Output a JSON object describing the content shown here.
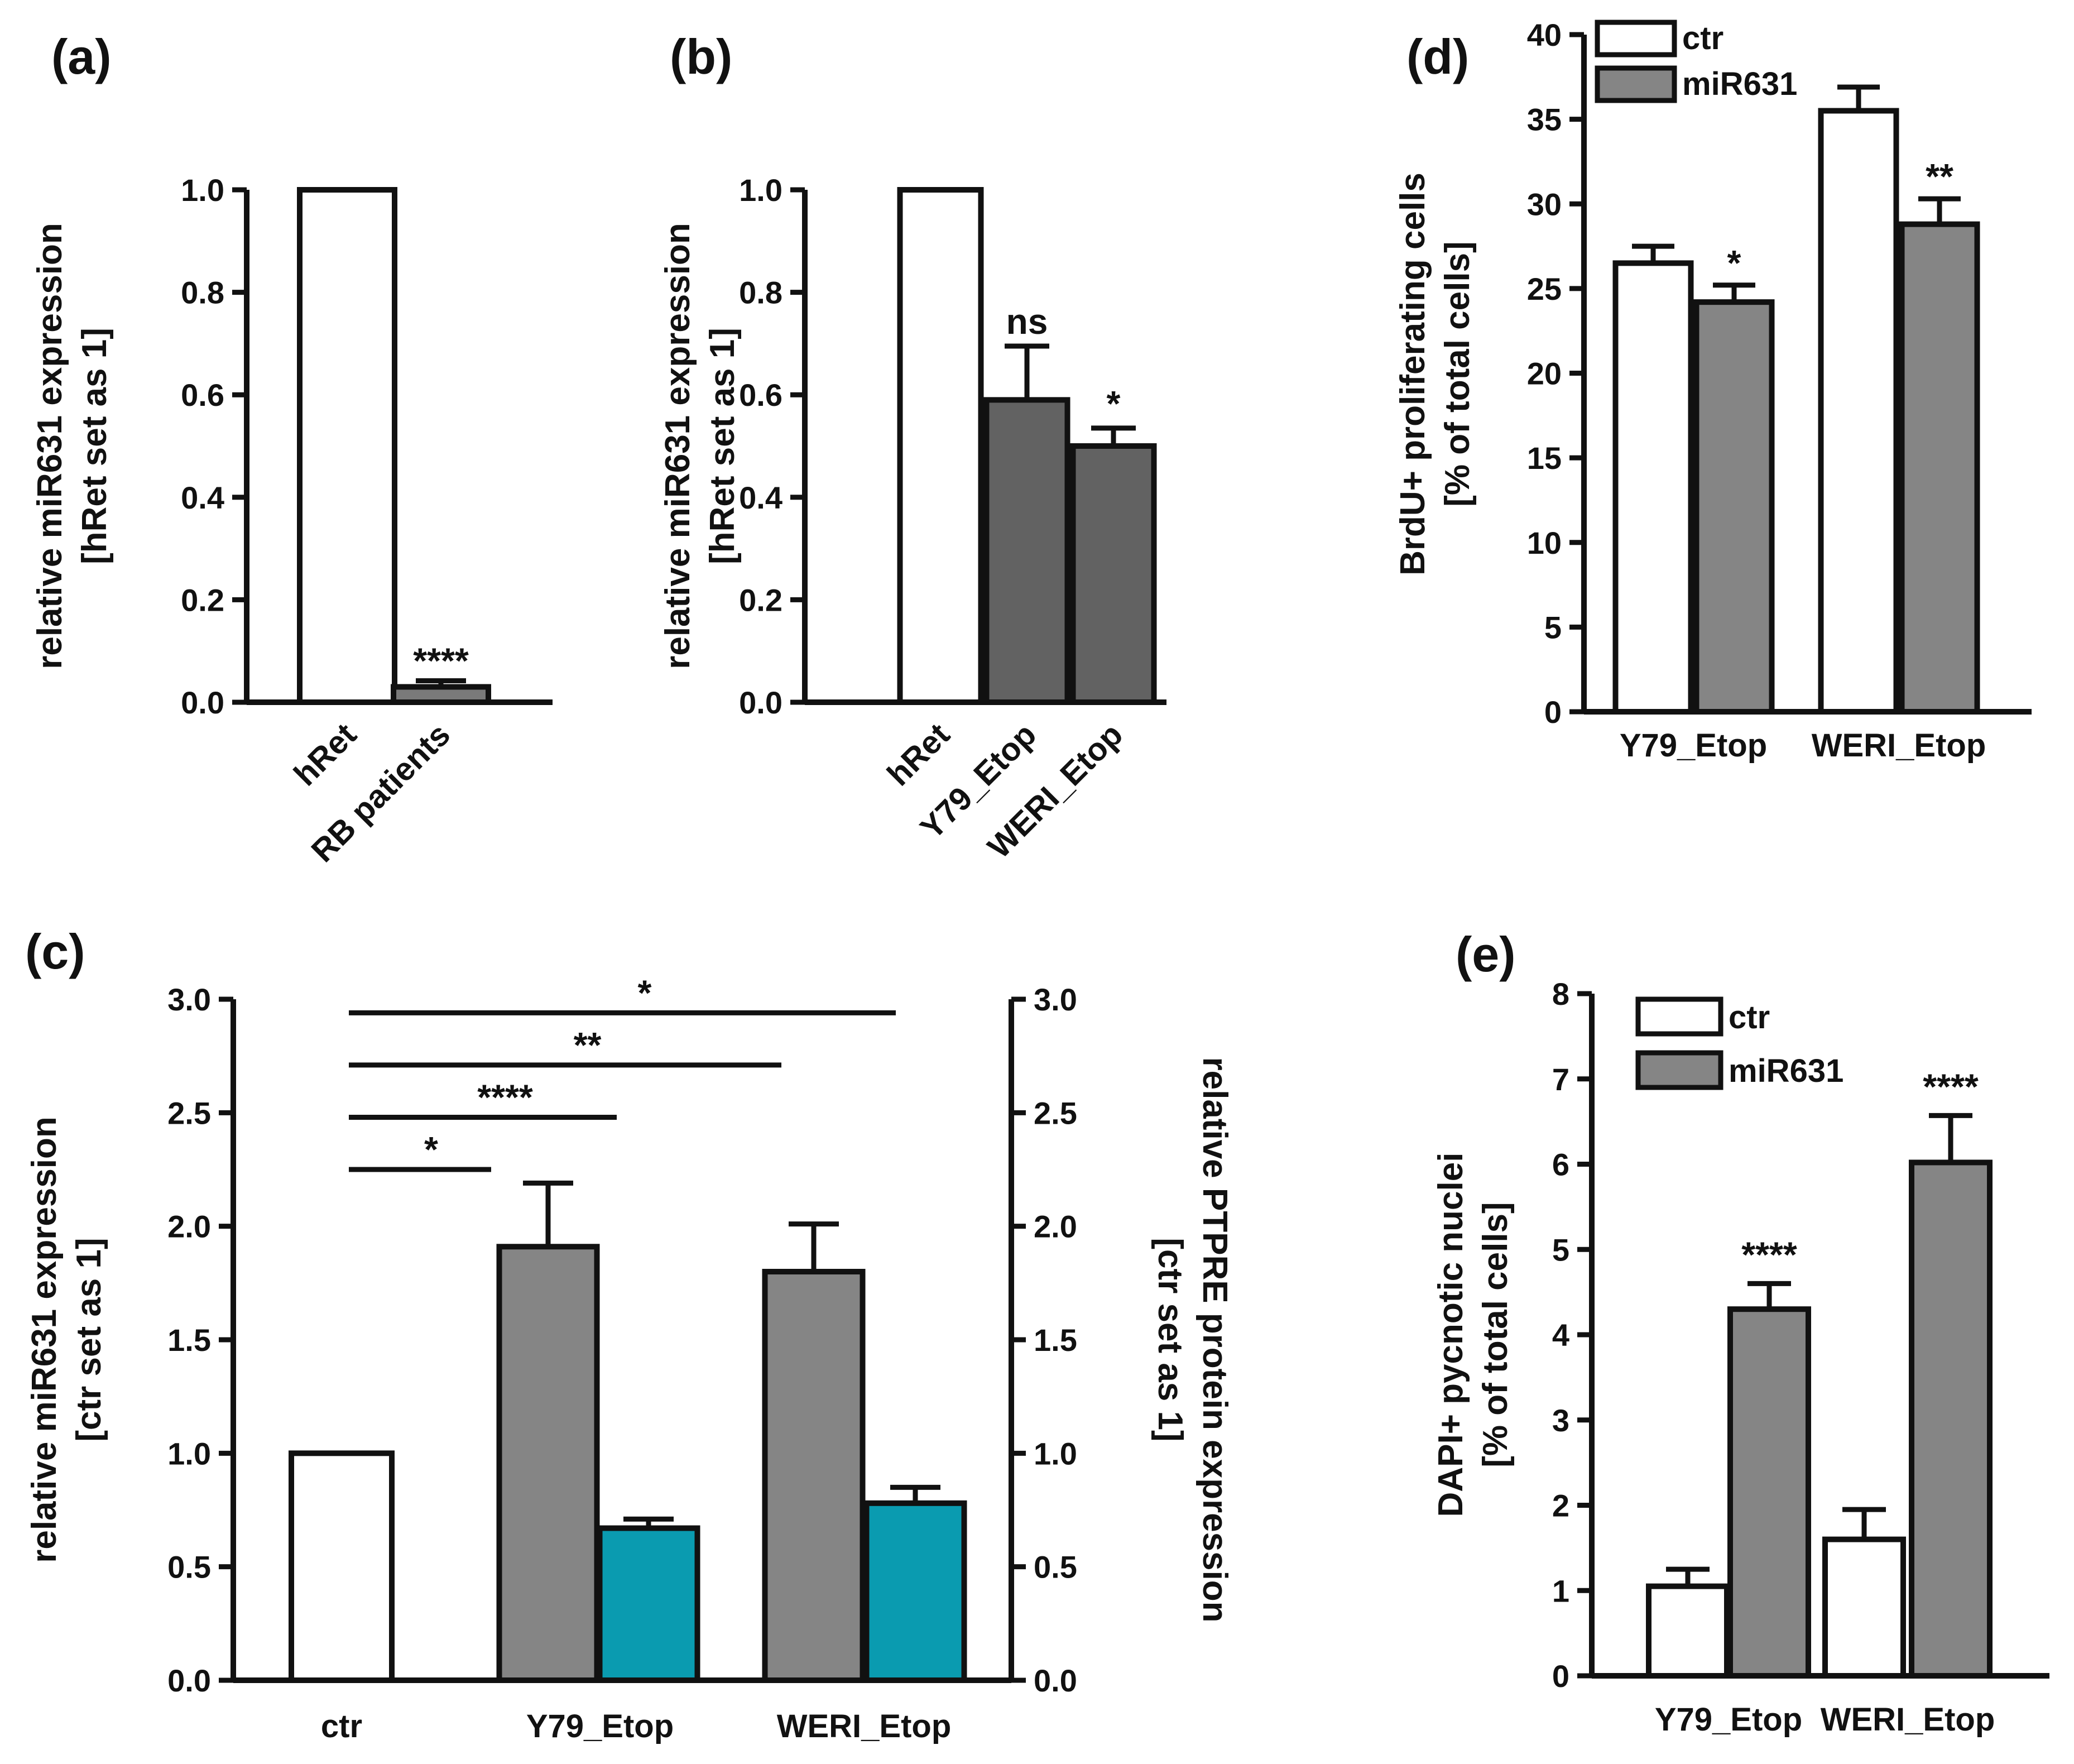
{
  "chart_data": [
    {
      "panel": "(a)",
      "type": "bar",
      "categories": [
        "hRet",
        "RB patients"
      ],
      "values": [
        1.0,
        0.03
      ],
      "errors": [
        0.0,
        0.012
      ],
      "colors": [
        "#ffffff",
        "#7a7a7a"
      ],
      "significance": [
        "",
        "****"
      ],
      "ylabel": [
        "relative miR631 expression",
        "[hRet set as 1]"
      ],
      "ylim": [
        0,
        1.0
      ],
      "yticks": [
        0.0,
        0.2,
        0.4,
        0.6,
        0.8,
        1.0
      ],
      "ytick_labels": [
        "0.0",
        "0.2",
        "0.4",
        "0.6",
        "0.8",
        "1.0"
      ]
    },
    {
      "panel": "(b)",
      "type": "bar",
      "categories": [
        "hRet",
        "Y79_Etop",
        "WERI_Etop"
      ],
      "values": [
        1.0,
        0.59,
        0.5
      ],
      "errors": [
        0.0,
        0.105,
        0.035
      ],
      "colors": [
        "#ffffff",
        "#626262",
        "#626262"
      ],
      "significance": [
        "",
        "ns",
        "*"
      ],
      "ylabel": [
        "relative miR631 expression",
        "[hRet set as 1]"
      ],
      "ylim": [
        0,
        1.0
      ],
      "yticks": [
        0.0,
        0.2,
        0.4,
        0.6,
        0.8,
        1.0
      ],
      "ytick_labels": [
        "0.0",
        "0.2",
        "0.4",
        "0.6",
        "0.8",
        "1.0"
      ]
    },
    {
      "panel": "(c)",
      "type": "bar",
      "categories": [
        "ctr",
        "Y79_Etop",
        "WERI_Etop"
      ],
      "series": [
        {
          "name": "ctr",
          "axis": "left",
          "values": [
            1.0,
            null,
            null
          ],
          "errors": [
            0.0,
            null,
            null
          ],
          "color": "#ffffff"
        },
        {
          "name": "miR631 expression",
          "axis": "left",
          "values": [
            null,
            1.91,
            1.8
          ],
          "errors": [
            null,
            0.28,
            0.21
          ],
          "color": "#858585"
        },
        {
          "name": "PTPRE protein expression",
          "axis": "right",
          "values": [
            null,
            0.67,
            0.78
          ],
          "errors": [
            null,
            0.04,
            0.07
          ],
          "color": "#0a9bb0"
        }
      ],
      "ylabel": [
        "relative miR631 expression",
        "[ctr set as 1]"
      ],
      "ylabel_right": [
        "relative PTPRE protein expression",
        "[ctr set as 1]"
      ],
      "ylim": [
        0,
        3.0
      ],
      "yticks": [
        0.0,
        0.5,
        1.0,
        1.5,
        2.0,
        2.5,
        3.0
      ],
      "ytick_labels": [
        "0.0",
        "0.5",
        "1.0",
        "1.5",
        "2.0",
        "2.5",
        "3.0"
      ],
      "comparisons": [
        {
          "from": "ctr",
          "to": "Y79_Etop miR631",
          "y": 2.25,
          "label": "*"
        },
        {
          "from": "ctr",
          "to": "Y79_Etop PTPRE",
          "y": 2.48,
          "label": "****"
        },
        {
          "from": "ctr",
          "to": "WERI_Etop miR631",
          "y": 2.71,
          "label": "**"
        },
        {
          "from": "ctr",
          "to": "WERI_Etop PTPRE",
          "y": 2.94,
          "label": "*"
        }
      ]
    },
    {
      "panel": "(d)",
      "type": "bar",
      "categories": [
        "Y79_Etop",
        "WERI_Etop"
      ],
      "series": [
        {
          "name": "ctr",
          "values": [
            26.5,
            35.5
          ],
          "errors": [
            1.0,
            1.4
          ],
          "color": "#ffffff"
        },
        {
          "name": "miR631",
          "values": [
            24.2,
            28.8
          ],
          "errors": [
            1.0,
            1.5
          ],
          "color": "#858585"
        }
      ],
      "significance": [
        "*",
        "**"
      ],
      "ylabel": [
        "BrdU+ proliferating cells",
        "[% of total cells]"
      ],
      "ylim": [
        0,
        40
      ],
      "yticks": [
        0,
        5,
        10,
        15,
        20,
        25,
        30,
        35,
        40
      ],
      "ytick_labels": [
        "0",
        "5",
        "10",
        "15",
        "20",
        "25",
        "30",
        "35",
        "40"
      ],
      "legend": "top-left"
    },
    {
      "panel": "(e)",
      "type": "bar",
      "categories": [
        "Y79_Etop",
        "WERI_Etop"
      ],
      "series": [
        {
          "name": "ctr",
          "values": [
            1.05,
            1.6
          ],
          "errors": [
            0.2,
            0.35
          ],
          "color": "#ffffff"
        },
        {
          "name": "miR631",
          "values": [
            4.3,
            6.02
          ],
          "errors": [
            0.3,
            0.55
          ],
          "color": "#858585"
        }
      ],
      "significance": [
        "****",
        "****"
      ],
      "ylabel": [
        "DAPI+ pycnotic nuclei",
        "[% of total cells]"
      ],
      "ylim": [
        0,
        8
      ],
      "yticks": [
        0,
        1,
        2,
        3,
        4,
        5,
        6,
        7,
        8
      ],
      "ytick_labels": [
        "0",
        "1",
        "2",
        "3",
        "4",
        "5",
        "6",
        "7",
        "8"
      ],
      "legend": "top-left"
    }
  ]
}
